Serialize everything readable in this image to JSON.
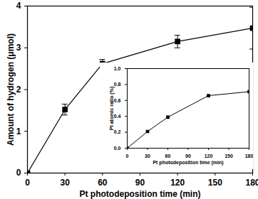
{
  "chart_data": [
    {
      "type": "line",
      "x_label": "Pt photodeposition time (min)",
      "y_label": "Amount of hydrogen (μmol)",
      "x": [
        0,
        30,
        60,
        120,
        180
      ],
      "values": [
        0,
        1.52,
        2.62,
        3.15,
        3.47
      ],
      "errors": [
        0,
        0.13,
        0.1,
        0.15,
        0.5
      ],
      "color": "#000000",
      "marker": "square",
      "line_style": "solid",
      "xlim": [
        0,
        180
      ],
      "xticks": [
        0,
        30,
        60,
        90,
        120,
        150,
        180
      ],
      "ylim": [
        0,
        4
      ],
      "yticks": [
        0,
        1,
        2,
        3,
        4
      ],
      "grid": false
    },
    {
      "type": "line",
      "x_label": "Pt photodeposition time (min)",
      "y_label": "Pt atomic ratio (%)",
      "x": [
        0,
        30,
        60,
        120,
        180
      ],
      "values": [
        0,
        0.21,
        0.39,
        0.66,
        0.71
      ],
      "color": "#000000",
      "marker": "square",
      "line_style": "solid",
      "xlim": [
        0,
        180
      ],
      "xticks": [
        0,
        30,
        60,
        90,
        120,
        150,
        180
      ],
      "ylim": [
        0,
        1.0
      ],
      "yticks": [
        {
          "value": 0,
          "label": "0.0"
        },
        {
          "value": 0.2,
          "label": "0.2"
        },
        {
          "value": 0.4,
          "label": "0.4"
        },
        {
          "value": 0.6,
          "label": "0.6"
        },
        {
          "value": 0.8,
          "label": "0.8"
        },
        {
          "value": 1.0,
          "label": "1.0"
        }
      ],
      "grid": false
    }
  ]
}
